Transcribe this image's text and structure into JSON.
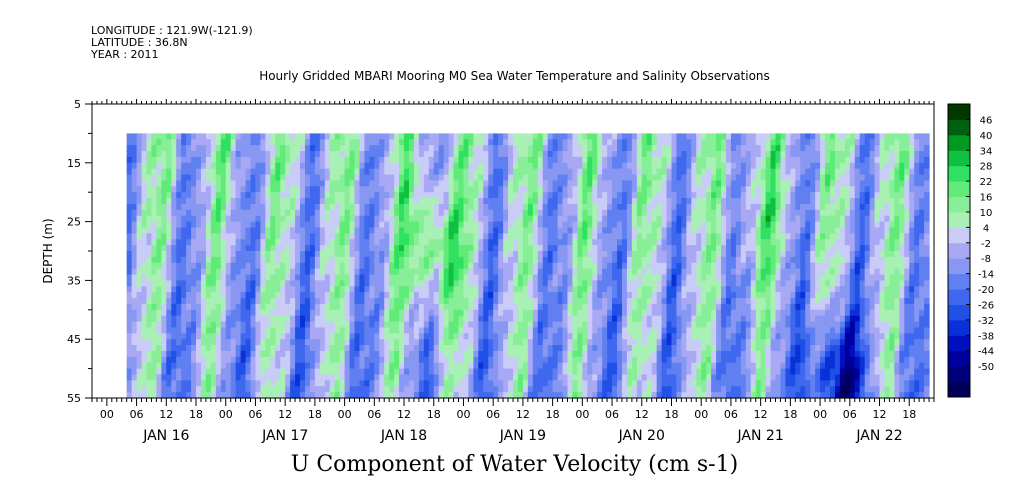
{
  "header": {
    "longitude": "LONGITUDE : 121.9W(-121.9)",
    "latitude": "LATITUDE : 36.8N",
    "year": "YEAR : 2011"
  },
  "chart_data": {
    "type": "heatmap",
    "title": "Hourly Gridded MBARI Mooring M0 Sea Water Temperature and Salinity Observations",
    "xlabel": "U Component of Water Velocity (cm s-1)",
    "ylabel": "DEPTH (m)",
    "y_axis": {
      "range": [
        5,
        55
      ],
      "inverted": true,
      "major_ticks": [
        5,
        15,
        25,
        35,
        45,
        55
      ],
      "minor_ticks": [
        10,
        20,
        30,
        40,
        50
      ]
    },
    "x_axis": {
      "hour_ticks": [
        "00",
        "06",
        "12",
        "18",
        "00",
        "06",
        "12",
        "18",
        "00",
        "06",
        "12",
        "18",
        "00",
        "06",
        "12",
        "18",
        "00",
        "06",
        "12",
        "18",
        "00",
        "06",
        "12",
        "18",
        "00",
        "06",
        "12",
        "18"
      ],
      "day_labels": [
        "JAN 16",
        "JAN 17",
        "JAN 18",
        "JAN 19",
        "JAN 20",
        "JAN 21",
        "JAN 22"
      ],
      "start": "JAN 15 21:00",
      "end": "JAN 22 23:00"
    },
    "data_extent": {
      "depth_min": 10,
      "depth_max": 55,
      "time_start": "JAN 16 04:00",
      "time_end": "JAN 22 22:00"
    },
    "colorbar": {
      "levels": [
        -50,
        -44,
        -38,
        -32,
        -26,
        -20,
        -14,
        -8,
        -2,
        4,
        10,
        16,
        22,
        28,
        34,
        40,
        46
      ],
      "tick_labels": [
        "46",
        "40",
        "34",
        "28",
        "22",
        "16",
        "10",
        "4",
        "-2",
        "-8",
        "-14",
        "-20",
        "-26",
        "-32",
        "-38",
        "-44",
        "-50"
      ],
      "colors": [
        "#00005a",
        "#00007a",
        "#00009e",
        "#0010c0",
        "#0a30d8",
        "#2050e6",
        "#4068ee",
        "#6080f2",
        "#8898f2",
        "#a8a8f4",
        "#c8ccf6",
        "#a8f0b4",
        "#88ee98",
        "#60ea78",
        "#30e060",
        "#10c040",
        "#009a20",
        "#006010",
        "#003800"
      ]
    },
    "features": [
      {
        "time": "JAN 18 18:00",
        "depth": 30,
        "value": 40,
        "note": "strongest positive core"
      },
      {
        "time": "JAN 21 12:00",
        "depth": 25,
        "value": 22
      },
      {
        "time": "JAN 22 03:00",
        "depth": 52,
        "value": -26
      }
    ]
  }
}
